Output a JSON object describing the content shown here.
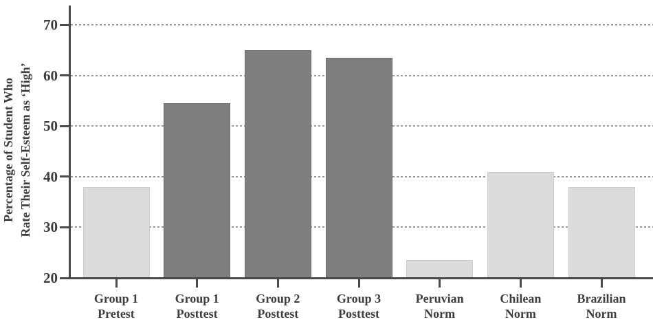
{
  "chart_data": {
    "type": "bar",
    "title": "",
    "ylabel_line1": "Percentage of Student Who",
    "ylabel_line2": "Rate Their Self-Esteem as ‘High’",
    "xlabel": "",
    "categories": [
      {
        "line1": "Group 1",
        "line2": "Pretest"
      },
      {
        "line1": "Group 1",
        "line2": "Posttest"
      },
      {
        "line1": "Group 2",
        "line2": "Posttest"
      },
      {
        "line1": "Group 3",
        "line2": "Posttest"
      },
      {
        "line1": "Peruvian",
        "line2": "Norm"
      },
      {
        "line1": "Chilean",
        "line2": "Norm"
      },
      {
        "line1": "Brazilian",
        "line2": "Norm"
      }
    ],
    "values": [
      38,
      54.5,
      65,
      63.5,
      23.5,
      41,
      38
    ],
    "bar_styles": [
      "light",
      "dark",
      "dark",
      "dark",
      "light",
      "light",
      "light"
    ],
    "y_ticks": [
      20,
      30,
      40,
      50,
      60,
      70
    ],
    "grid_values": [
      30,
      40,
      50,
      60,
      70
    ],
    "ylim": [
      20,
      74
    ],
    "grid_style": "horizontal dotted",
    "legend": "none",
    "colors": {
      "bar_light": "#dcdcdc",
      "bar_light_border": "#cccccc",
      "bar_dark": "#7e7e7e",
      "bar_dark_border": "#6e6e6e",
      "axis": "#4a4a4a",
      "grid_dot": "#9a9a9a",
      "text": "#3d3d3d"
    }
  }
}
